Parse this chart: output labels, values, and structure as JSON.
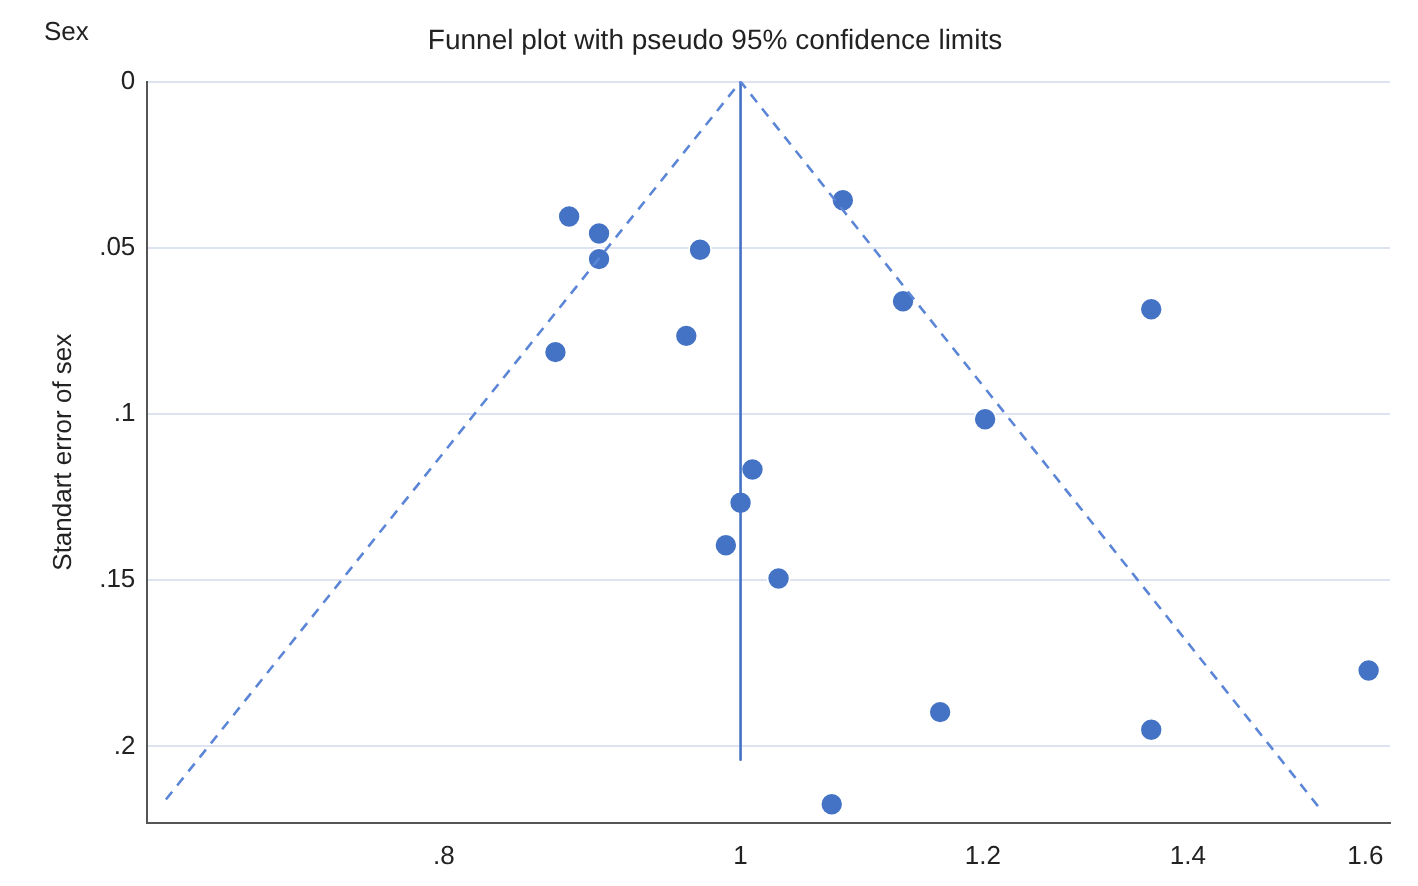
{
  "chart_data": {
    "type": "scatter",
    "title": "Funnel plot with pseudo 95% confidence limits",
    "ylabel": "Standart error of sex",
    "annotations": [
      "Sex"
    ],
    "log": "x",
    "grid": "y",
    "legend": false,
    "marker": "circle",
    "xlim": [
      0.64,
      1.63
    ],
    "xticks": [
      {
        "value": 0.8,
        "label": ".8"
      },
      1,
      1.2,
      1.4,
      1.6
    ],
    "ylim": [
      0.223,
      0
    ],
    "yticks": [
      0,
      {
        "value": 0.05,
        "label": ".05"
      },
      {
        "value": 0.1,
        "label": ".1"
      },
      {
        "value": 0.15,
        "label": ".15"
      },
      {
        "value": 0.2,
        "label": ".2"
      }
    ],
    "series": [
      {
        "type": "line",
        "line_style": "dashed",
        "marker": "none",
        "color": "#5b85d6",
        "x": [
          0.649,
          1,
          1.549
        ],
        "values": [
          0.216,
          0,
          0.2196
        ]
      },
      {
        "type": "line",
        "line_style": "solid",
        "marker": "none",
        "color": "#4472c4",
        "x": [
          1,
          1
        ],
        "values": [
          0,
          0.204
        ]
      },
      {
        "type": "scatter",
        "color": "#4472c4",
        "x": [
          0.879,
          0.899,
          0.899,
          0.97,
          1.08,
          1.13,
          0.87,
          0.96,
          1.202,
          1.009,
          1.0,
          0.989,
          1.029,
          1.362,
          1.604,
          1.162,
          1.362,
          1.071
        ],
        "values": [
          0.0406,
          0.0457,
          0.0534,
          0.0506,
          0.0357,
          0.0661,
          0.0814,
          0.0765,
          0.1016,
          0.1167,
          0.1267,
          0.1395,
          0.1495,
          0.0685,
          0.1772,
          0.1897,
          0.195,
          0.2174
        ]
      }
    ]
  }
}
